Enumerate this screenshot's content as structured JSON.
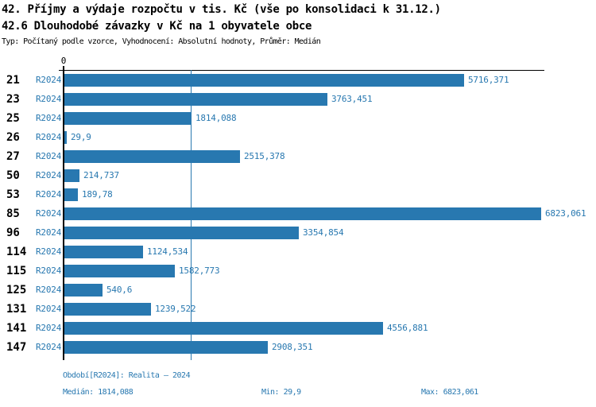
{
  "header": {
    "title_line1": "42. Příjmy a výdaje rozpočtu v tis. Kč (vše po konsolidaci k 31.12.)",
    "title_line2": "42.6 Dlouhodobé závazky v Kč na 1 obyvatele obce",
    "subtitle": "Typ: Počítaný podle vzorce, Vyhodnocení: Absolutní hodnoty, Průměr: Medián"
  },
  "chart_data": {
    "type": "bar",
    "orientation": "horizontal",
    "series_label": "R2024",
    "categories": [
      "21",
      "23",
      "25",
      "26",
      "27",
      "50",
      "53",
      "85",
      "96",
      "114",
      "115",
      "125",
      "131",
      "141",
      "147"
    ],
    "values": [
      5716.371,
      3763.451,
      1814.088,
      29.9,
      2515.378,
      214.737,
      189.78,
      6823.061,
      3354.854,
      1124.534,
      1582.773,
      540.6,
      1239.522,
      4556.881,
      2908.351
    ],
    "value_labels": [
      "5716,371",
      "3763,451",
      "1814,088",
      "29,9",
      "2515,378",
      "214,737",
      "189,78",
      "6823,061",
      "3354,854",
      "1124,534",
      "1582,773",
      "540,6",
      "1239,522",
      "4556,881",
      "2908,351"
    ],
    "xlim": [
      0,
      6823.061
    ],
    "x_tick_labels": [
      "0"
    ],
    "median_line_value": 1814.088,
    "bar_color": "#2878b0",
    "text_color": "#2878b0",
    "grid": false,
    "legend": "none"
  },
  "footer": {
    "period_label": "Období[R2024]: Realita – 2024",
    "median_label": "Medián: 1814,088",
    "min_label": "Min: 29,9",
    "max_label": "Max: 6823,061"
  }
}
